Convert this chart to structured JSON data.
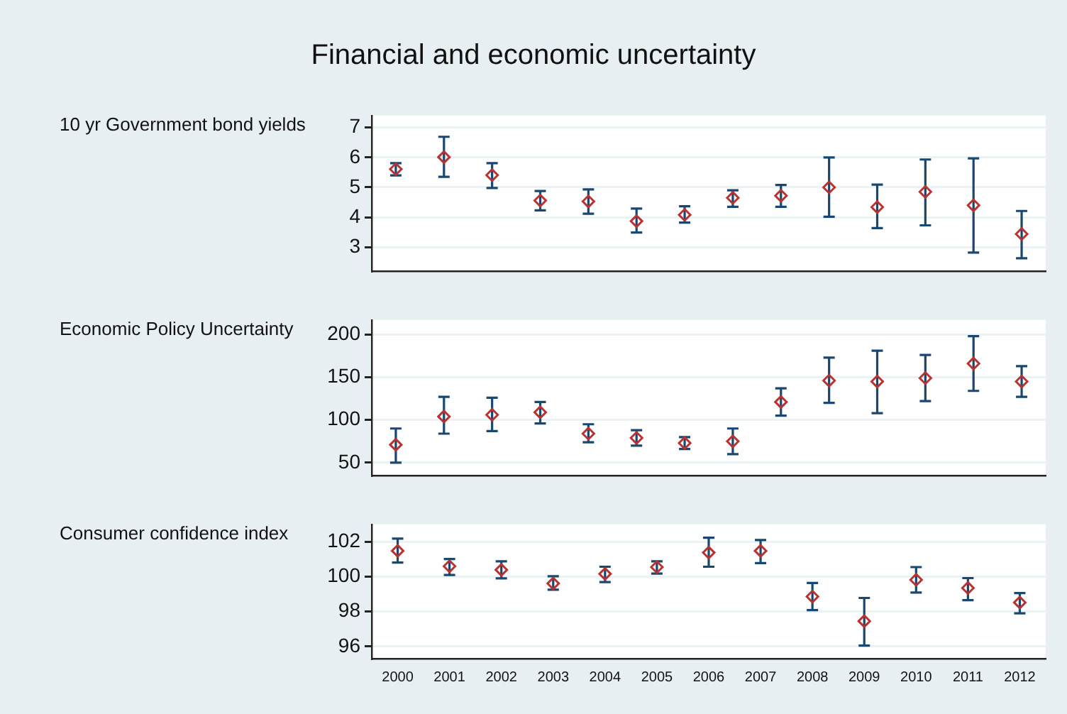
{
  "chart_data": [
    {
      "type": "scatter",
      "title": "Financial and economic uncertainty",
      "ylabel": "10 yr Government bond yields",
      "categories": [
        null,
        null,
        null,
        null,
        null,
        null,
        null,
        null,
        null,
        null,
        null,
        null,
        null,
        null
      ],
      "values": [
        5.61,
        6.01,
        5.41,
        4.56,
        4.53,
        3.87,
        4.08,
        4.65,
        4.72,
        5.0,
        4.34,
        4.85,
        4.4,
        3.44
      ],
      "errors": [
        [
          5.4,
          5.81
        ],
        [
          5.35,
          6.69
        ],
        [
          4.98,
          5.81
        ],
        [
          4.23,
          4.88
        ],
        [
          4.12,
          4.93
        ],
        [
          3.49,
          4.29
        ],
        [
          3.82,
          4.37
        ],
        [
          4.35,
          4.9
        ],
        [
          4.35,
          5.08
        ],
        [
          4.02,
          6.0
        ],
        [
          3.64,
          5.09
        ],
        [
          3.73,
          5.93
        ],
        [
          2.82,
          5.97
        ],
        [
          2.63,
          4.21
        ]
      ],
      "color": "#b83232",
      "marker": "diamond",
      "grid": "y",
      "legend": false,
      "tick_labels": "y",
      "ylim": [
        2.2,
        7.4
      ],
      "yticks": [
        3,
        4,
        5,
        6,
        7
      ]
    },
    {
      "type": "scatter",
      "ylabel": "Economic Policy Uncertainty",
      "categories": [
        null,
        null,
        null,
        null,
        null,
        null,
        null,
        null,
        null,
        null,
        null,
        null,
        null,
        null
      ],
      "values": [
        71,
        104,
        106,
        109,
        84,
        79,
        73,
        75,
        121,
        146,
        145,
        149,
        166,
        145
      ],
      "errors": [
        [
          50,
          90
        ],
        [
          84,
          127
        ],
        [
          87,
          126
        ],
        [
          96,
          121
        ],
        [
          74,
          95
        ],
        [
          70,
          88
        ],
        [
          66,
          80
        ],
        [
          60,
          90
        ],
        [
          105,
          137
        ],
        [
          120,
          173
        ],
        [
          108,
          181
        ],
        [
          122,
          176
        ],
        [
          134,
          198
        ],
        [
          127,
          163
        ]
      ],
      "color": "#b83232",
      "marker": "diamond",
      "grid": "y",
      "legend": false,
      "tick_labels": "y",
      "ylim": [
        35,
        217
      ],
      "yticks": [
        50,
        100,
        150,
        200
      ]
    },
    {
      "type": "scatter",
      "ylabel": "Consumer confidence index",
      "categories": [
        "2000",
        "2001",
        "2002",
        "2003",
        "2004",
        "2005",
        "2006",
        "2007",
        "2008",
        "2009",
        "2010",
        "2011",
        "2012"
      ],
      "values": [
        101.48,
        100.6,
        100.39,
        99.61,
        100.16,
        100.55,
        101.38,
        101.48,
        98.86,
        97.45,
        99.82,
        99.35,
        98.52
      ],
      "errors": [
        [
          100.81,
          102.18
        ],
        [
          100.1,
          101.01
        ],
        [
          99.9,
          100.88
        ],
        [
          99.25,
          100.03
        ],
        [
          99.69,
          100.57
        ],
        [
          100.18,
          100.88
        ],
        [
          100.57,
          102.23
        ],
        [
          100.78,
          102.1
        ],
        [
          98.08,
          99.64
        ],
        [
          96.05,
          98.78
        ],
        [
          99.09,
          100.55
        ],
        [
          98.65,
          99.92
        ],
        [
          97.9,
          99.06
        ]
      ],
      "color": "#b83232",
      "marker": "diamond",
      "grid": "y",
      "legend": false,
      "ylim": [
        95.3,
        103
      ],
      "yticks": [
        96,
        98,
        100,
        102
      ]
    }
  ]
}
